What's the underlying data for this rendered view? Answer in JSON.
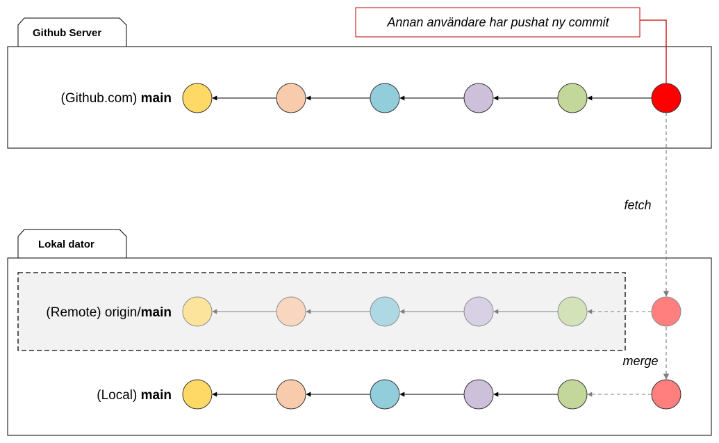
{
  "server": {
    "tab_label": "Github Server",
    "row_label_prefix": "(Github.com) ",
    "row_label_branch": "main",
    "commit_colors": [
      "#FFD966",
      "#F8CBAD",
      "#92CDDC",
      "#CCC0DA",
      "#C4D79B",
      "#FF0000"
    ]
  },
  "local": {
    "tab_label": "Lokal dator",
    "remote_row": {
      "label_prefix": "(Remote) origin/",
      "label_branch": "main",
      "commit_colors": [
        "#FCE49C",
        "#F9D6BF",
        "#AED9E4",
        "#D8D0E5",
        "#D3E2B8",
        "#FF7F7F"
      ]
    },
    "local_row": {
      "label_prefix": "(Local) ",
      "label_branch": "main",
      "commit_colors": [
        "#FFD966",
        "#F8CBAD",
        "#92CDDC",
        "#CCC0DA",
        "#C4D79B",
        "#FF7F7F"
      ]
    }
  },
  "callout": {
    "text": "Annan användare har pushat ny commit",
    "border_color": "#C00000"
  },
  "actions": {
    "fetch": "fetch",
    "merge": "merge"
  }
}
